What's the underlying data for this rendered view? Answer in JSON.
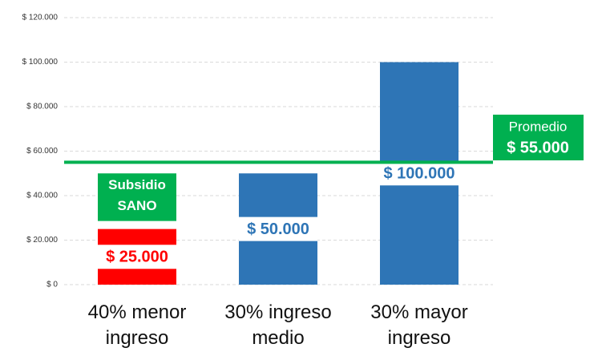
{
  "chart_data": {
    "type": "bar",
    "categories": [
      "40% menor ingreso",
      "30% ingreso medio",
      "30% mayor ingreso"
    ],
    "series": [
      {
        "colors": [
          "#ff0000",
          "#2e75b6",
          "#2e75b6"
        ],
        "values": [
          25000,
          50000,
          100000
        ],
        "value_labels": [
          "$ 25.000",
          "$ 50.000",
          "$ 100.000"
        ],
        "label_colors": [
          "#ff0000",
          "#2e75b6",
          "#2e75b6"
        ]
      },
      {
        "name": "Subsidio SANO",
        "color": "#00b050",
        "values": [
          25000,
          null,
          null
        ]
      }
    ],
    "average": {
      "label": "Promedio",
      "value": 55000,
      "value_label": "$ 55.000",
      "color": "#00b050"
    },
    "ylim": [
      0,
      120000
    ],
    "yticks": [
      {
        "value": 0,
        "label": "$ 0"
      },
      {
        "value": 20000,
        "label": "$ 20.000"
      },
      {
        "value": 40000,
        "label": "$ 40.000"
      },
      {
        "value": 60000,
        "label": "$ 60.000"
      },
      {
        "value": 80000,
        "label": "$ 80.000"
      },
      {
        "value": 100000,
        "label": "$ 100.000"
      },
      {
        "value": 120000,
        "label": "$ 120.000"
      }
    ],
    "grid": true
  }
}
